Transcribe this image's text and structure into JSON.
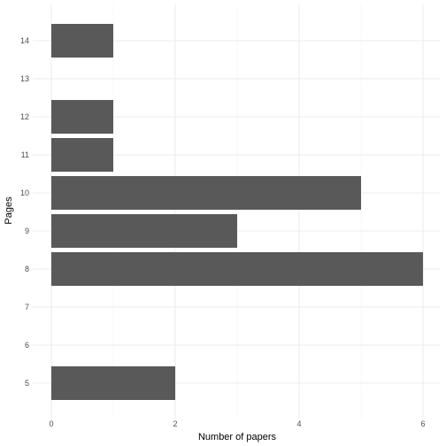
{
  "chart_data": {
    "type": "bar",
    "orientation": "horizontal",
    "categories": [
      "5",
      "6",
      "7",
      "8",
      "9",
      "10",
      "11",
      "12",
      "13",
      "14"
    ],
    "values": [
      2,
      0,
      0,
      6,
      3,
      5,
      1,
      1,
      0,
      1
    ],
    "xlabel": "Number of papers",
    "ylabel": "Pages",
    "xlim": [
      0,
      6
    ],
    "xticks": [
      "0",
      "2",
      "4",
      "6"
    ],
    "grid": true,
    "bar_color": "#595959"
  }
}
